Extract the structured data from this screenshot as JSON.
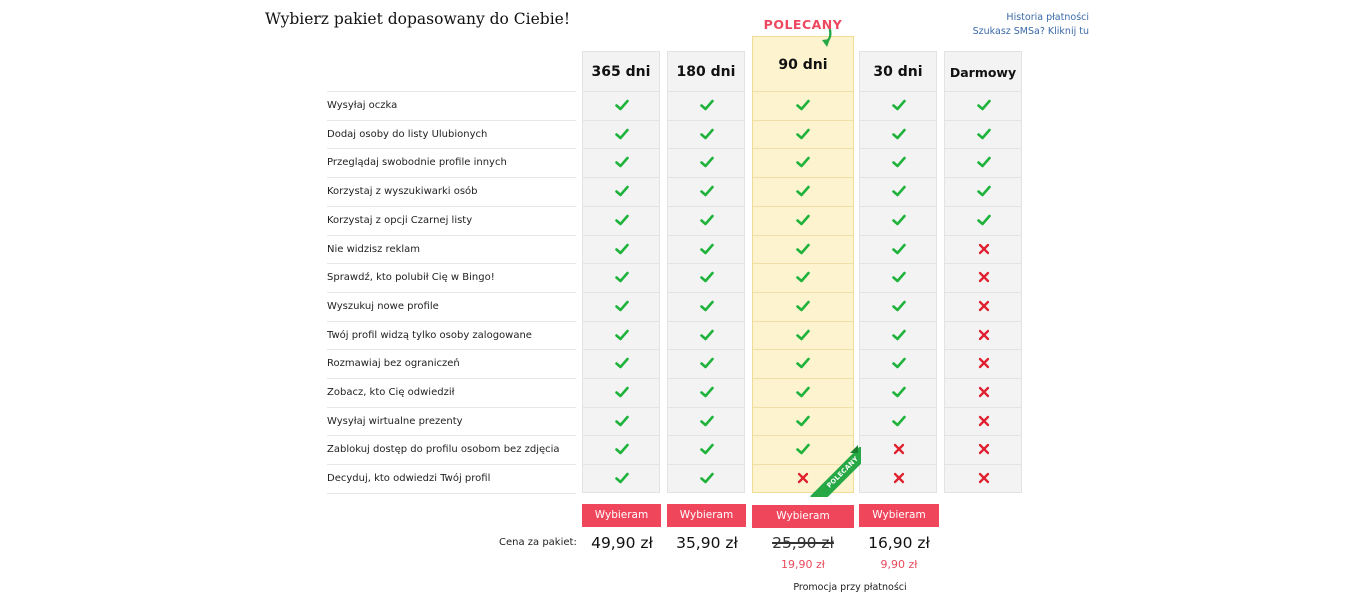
{
  "header": {
    "title": "Wybierz pakiet dopasowany do Ciebie!",
    "links": [
      "Historia płatności",
      "Szukasz SMSa? Kliknij tu"
    ]
  },
  "recommended_label": "POLECANY",
  "ribbon_label": "POLECANY",
  "plans": [
    {
      "name": "365 dni",
      "button": "Wybieram",
      "price": "49,90 zł",
      "promo_price": ""
    },
    {
      "name": "180 dni",
      "button": "Wybieram",
      "price": "35,90 zł",
      "promo_price": ""
    },
    {
      "name": "90 dni",
      "button": "Wybieram",
      "price": "25,90 zł",
      "promo_price": "19,90 zł",
      "recommended": true
    },
    {
      "name": "30 dni",
      "button": "Wybieram",
      "price": "16,90 zł",
      "promo_price": "9,90 zł"
    },
    {
      "name": "Darmowy",
      "button": "",
      "price": "",
      "promo_price": ""
    }
  ],
  "features": [
    {
      "label": "Wysyłaj oczka",
      "availability": [
        true,
        true,
        true,
        true,
        true
      ]
    },
    {
      "label": "Dodaj osoby do listy Ulubionych",
      "availability": [
        true,
        true,
        true,
        true,
        true
      ]
    },
    {
      "label": "Przeglądaj swobodnie profile innych",
      "availability": [
        true,
        true,
        true,
        true,
        true
      ]
    },
    {
      "label": "Korzystaj z wyszukiwarki osób",
      "availability": [
        true,
        true,
        true,
        true,
        true
      ]
    },
    {
      "label": "Korzystaj z opcji Czarnej listy",
      "availability": [
        true,
        true,
        true,
        true,
        true
      ]
    },
    {
      "label": "Nie widzisz reklam",
      "availability": [
        true,
        true,
        true,
        true,
        false
      ]
    },
    {
      "label": "Sprawdź, kto polubił Cię w Bingo!",
      "availability": [
        true,
        true,
        true,
        true,
        false
      ]
    },
    {
      "label": "Wyszukuj nowe profile",
      "availability": [
        true,
        true,
        true,
        true,
        false
      ]
    },
    {
      "label": "Twój profil widzą tylko osoby zalogowane",
      "availability": [
        true,
        true,
        true,
        true,
        false
      ]
    },
    {
      "label": "Rozmawiaj bez ograniczeń",
      "availability": [
        true,
        true,
        true,
        true,
        false
      ]
    },
    {
      "label": "Zobacz, kto Cię odwiedził",
      "availability": [
        true,
        true,
        true,
        true,
        false
      ]
    },
    {
      "label": "Wysyłaj wirtualne prezenty",
      "availability": [
        true,
        true,
        true,
        true,
        false
      ]
    },
    {
      "label": "Zablokuj dostęp do profilu osobom bez zdjęcia",
      "availability": [
        true,
        true,
        true,
        false,
        false
      ]
    },
    {
      "label": "Decyduj, kto odwiedzi Twój profil",
      "availability": [
        true,
        true,
        false,
        false,
        false
      ]
    }
  ],
  "pricing": {
    "label": "Cena za pakiet:",
    "promo_note": "Promocja przy płatności"
  },
  "icons": {
    "check": "check-icon",
    "cross": "cross-icon"
  },
  "colors": {
    "accent": "#f0465c",
    "check": "#1fb33c",
    "cross": "#e0202f",
    "recommended_bg": "#fdf3cf",
    "link": "#3a6aa8"
  }
}
